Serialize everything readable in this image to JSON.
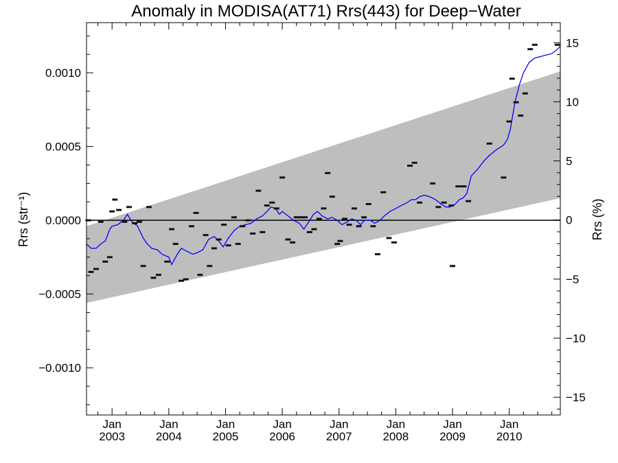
{
  "chart_data": {
    "type": "scatter",
    "title": "Anomaly in MODISA(AT71) Rrs(443) for Deep−Water",
    "ylabel_left": "Rrs (str⁻¹)",
    "ylabel_right": "Rrs (%)",
    "xlim": [
      2002.55,
      2010.9
    ],
    "ylim_left": [
      -0.00132,
      0.00134
    ],
    "ylim_right": [
      -16.5,
      16.7
    ],
    "grid": false,
    "legend": "none",
    "x_ticks": [
      {
        "x": 2003.0,
        "month": "Jan",
        "year": "2003"
      },
      {
        "x": 2004.0,
        "month": "Jan",
        "year": "2004"
      },
      {
        "x": 2005.0,
        "month": "Jan",
        "year": "2005"
      },
      {
        "x": 2006.0,
        "month": "Jan",
        "year": "2006"
      },
      {
        "x": 2007.0,
        "month": "Jan",
        "year": "2007"
      },
      {
        "x": 2008.0,
        "month": "Jan",
        "year": "2008"
      },
      {
        "x": 2009.0,
        "month": "Jan",
        "year": "2009"
      },
      {
        "x": 2010.0,
        "month": "Jan",
        "year": "2010"
      }
    ],
    "y_ticks_left": [
      {
        "v": 0.001,
        "label": "0.0010"
      },
      {
        "v": 0.0005,
        "label": "0.0005"
      },
      {
        "v": 0.0,
        "label": "0.0000"
      },
      {
        "v": -0.0005,
        "label": "−0.0005"
      },
      {
        "v": -0.001,
        "label": "−0.0010"
      }
    ],
    "y_ticks_right": [
      {
        "v": 15,
        "label": "15"
      },
      {
        "v": 10,
        "label": "10"
      },
      {
        "v": 5,
        "label": "5"
      },
      {
        "v": 0,
        "label": "0"
      },
      {
        "v": -5,
        "label": "−5"
      },
      {
        "v": -10,
        "label": "−10"
      },
      {
        "v": -15,
        "label": "−15"
      }
    ],
    "confidence_band": {
      "x_start": 2002.55,
      "x_end": 2010.9,
      "upper_start": -4e-05,
      "upper_end": 0.00101,
      "lower_start": -0.00056,
      "lower_end": 0.00015,
      "color": "#bebebe"
    },
    "zero_line": 0,
    "points": [
      [
        2002.58,
        0.0
      ],
      [
        2002.63,
        -0.00035
      ],
      [
        2002.72,
        -0.00033
      ],
      [
        2002.8,
        -1e-05
      ],
      [
        2002.88,
        -0.00028
      ],
      [
        2002.96,
        -0.00025
      ],
      [
        2003.0,
        6e-05
      ],
      [
        2003.05,
        0.00014
      ],
      [
        2003.12,
        7e-05
      ],
      [
        2003.22,
        -1e-05
      ],
      [
        2003.3,
        9e-05
      ],
      [
        2003.4,
        -2e-05
      ],
      [
        2003.48,
        -1e-05
      ],
      [
        2003.55,
        -0.00031
      ],
      [
        2003.65,
        9e-05
      ],
      [
        2003.73,
        -0.00039
      ],
      [
        2003.82,
        -0.00037
      ],
      [
        2003.97,
        -0.00028
      ],
      [
        2004.05,
        -6e-05
      ],
      [
        2004.12,
        -0.00016
      ],
      [
        2004.22,
        -0.00041
      ],
      [
        2004.3,
        -0.0004
      ],
      [
        2004.4,
        -4e-05
      ],
      [
        2004.48,
        5e-05
      ],
      [
        2004.55,
        -0.00037
      ],
      [
        2004.65,
        -0.0001
      ],
      [
        2004.72,
        -0.00031
      ],
      [
        2004.8,
        -0.00019
      ],
      [
        2004.88,
        -0.00013
      ],
      [
        2004.97,
        -3e-05
      ],
      [
        2005.05,
        -0.00017
      ],
      [
        2005.15,
        2e-05
      ],
      [
        2005.22,
        -0.00016
      ],
      [
        2005.3,
        -4e-05
      ],
      [
        2005.4,
        0.0
      ],
      [
        2005.48,
        -9e-05
      ],
      [
        2005.58,
        0.0002
      ],
      [
        2005.65,
        -8e-05
      ],
      [
        2005.73,
        0.0001
      ],
      [
        2005.82,
        0.00012
      ],
      [
        2005.9,
        8e-05
      ],
      [
        2006.0,
        0.00029
      ],
      [
        2006.1,
        -0.00013
      ],
      [
        2006.18,
        -0.00015
      ],
      [
        2006.25,
        2e-05
      ],
      [
        2006.33,
        2e-05
      ],
      [
        2006.4,
        2e-05
      ],
      [
        2006.48,
        -8e-05
      ],
      [
        2006.56,
        -6e-05
      ],
      [
        2006.65,
        1e-05
      ],
      [
        2006.73,
        8e-05
      ],
      [
        2006.8,
        0.00032
      ],
      [
        2006.88,
        0.00016
      ],
      [
        2006.97,
        -0.00016
      ],
      [
        2007.02,
        -0.00014
      ],
      [
        2007.1,
        1e-05
      ],
      [
        2007.18,
        -3e-05
      ],
      [
        2007.27,
        8e-05
      ],
      [
        2007.35,
        -4e-05
      ],
      [
        2007.44,
        2e-05
      ],
      [
        2007.52,
        0.00011
      ],
      [
        2007.6,
        -4e-05
      ],
      [
        2007.68,
        -0.00023
      ],
      [
        2007.78,
        0.00019
      ],
      [
        2007.88,
        -0.00012
      ],
      [
        2007.97,
        -0.00015
      ],
      [
        2008.25,
        0.00037
      ],
      [
        2008.33,
        0.00039
      ],
      [
        2008.42,
        0.00012
      ],
      [
        2008.65,
        0.00025
      ],
      [
        2008.75,
        9e-05
      ],
      [
        2008.85,
        0.00012
      ],
      [
        2008.98,
        0.0001
      ],
      [
        2009.0,
        -0.00031
      ],
      [
        2009.1,
        0.00023
      ],
      [
        2009.2,
        0.00023
      ],
      [
        2009.28,
        0.00013
      ],
      [
        2009.65,
        0.00052
      ],
      [
        2009.9,
        0.00029
      ],
      [
        2010.0,
        0.00067
      ],
      [
        2010.05,
        0.00096
      ],
      [
        2010.12,
        0.0008
      ],
      [
        2010.2,
        0.00071
      ],
      [
        2010.28,
        0.00086
      ],
      [
        2010.37,
        0.00116
      ],
      [
        2010.45,
        0.00119
      ],
      [
        2010.85,
        0.00119
      ]
    ],
    "running_mean": {
      "color": "#0000ff",
      "x": [
        2002.55,
        2002.63,
        2002.72,
        2002.8,
        2002.88,
        2002.96,
        2003.0,
        2003.1,
        2003.2,
        2003.27,
        2003.35,
        2003.45,
        2003.55,
        2003.62,
        2003.7,
        2003.8,
        2003.88,
        2004.0,
        2004.05,
        2004.15,
        2004.22,
        2004.32,
        2004.42,
        2004.5,
        2004.6,
        2004.7,
        2004.8,
        2004.88,
        2004.96,
        2005.05,
        2005.15,
        2005.25,
        2005.35,
        2005.45,
        2005.55,
        2005.65,
        2005.73,
        2005.8,
        2005.88,
        2005.95,
        2006.0,
        2006.1,
        2006.2,
        2006.3,
        2006.38,
        2006.45,
        2006.55,
        2006.62,
        2006.7,
        2006.8,
        2006.88,
        2006.97,
        2007.05,
        2007.15,
        2007.22,
        2007.3,
        2007.38,
        2007.45,
        2007.55,
        2007.63,
        2007.72,
        2007.8,
        2007.9,
        2008.0,
        2008.1,
        2008.2,
        2008.28,
        2008.35,
        2008.42,
        2008.5,
        2008.6,
        2008.7,
        2008.8,
        2008.88,
        2008.95,
        2009.05,
        2009.12,
        2009.18,
        2009.25,
        2009.33,
        2009.45,
        2009.55,
        2009.65,
        2009.78,
        2009.9,
        2009.97,
        2010.02,
        2010.1,
        2010.18,
        2010.25,
        2010.35,
        2010.45,
        2010.55,
        2010.65,
        2010.75,
        2010.85,
        2010.9
      ],
      "y": [
        -0.00016,
        -0.00019,
        -0.00019,
        -0.00016,
        -0.00014,
        -6e-05,
        -4e-05,
        -3e-05,
        0.0,
        4e-05,
        -1e-05,
        -4e-05,
        -0.00012,
        -0.00016,
        -0.00019,
        -0.0002,
        -0.00023,
        -0.00025,
        -0.0003,
        -0.00023,
        -0.00019,
        -0.00021,
        -0.00023,
        -0.00022,
        -0.0002,
        -0.00013,
        -0.00011,
        -0.00014,
        -0.00018,
        -0.00012,
        -7e-05,
        -4e-05,
        -3e-05,
        -2e-05,
        1e-05,
        3e-05,
        6e-05,
        9e-05,
        8e-05,
        4e-05,
        6e-05,
        3e-05,
        0.0,
        -2e-05,
        -6e-05,
        -2e-05,
        4e-05,
        6e-05,
        3e-05,
        1e-05,
        2e-05,
        0.0,
        -3e-05,
        -1e-05,
        1e-05,
        0.0,
        -3e-05,
        0.0,
        0.0,
        -2e-05,
        0.0,
        3e-05,
        6e-05,
        8e-05,
        0.0001,
        0.00012,
        0.00014,
        0.00014,
        0.00016,
        0.00017,
        0.00016,
        0.00014,
        0.00011,
        9e-05,
        9e-05,
        0.00011,
        0.00014,
        0.00015,
        0.00018,
        0.0003,
        0.00035,
        0.0004,
        0.00044,
        0.00048,
        0.00051,
        0.00055,
        0.00062,
        0.0008,
        0.00092,
        0.001,
        0.00107,
        0.0011,
        0.00111,
        0.00112,
        0.00113,
        0.00116,
        0.00118
      ]
    }
  }
}
